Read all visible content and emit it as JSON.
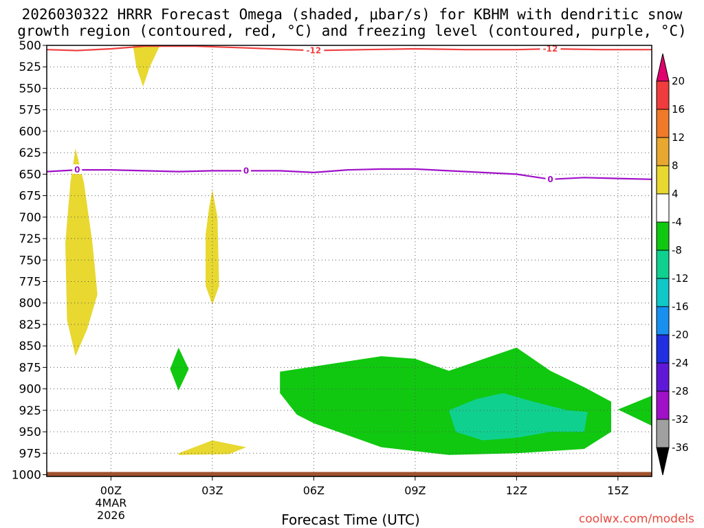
{
  "chart_data": {
    "type": "time-height cross section",
    "title_line1": "2026030322 HRRR Forecast Omega (shaded, μbar/s) for KBHM with dendritic snow",
    "title_line2": "growth region (contoured, red, °C) and freezing level (contoured, purple, °C)",
    "xlabel": "Forecast Time (UTC)",
    "credit": "coolwx.com/models",
    "x_range_hours": [
      -1.9,
      16.0
    ],
    "y_range_hpa": [
      500,
      1002
    ],
    "y_ticks": [
      500,
      525,
      550,
      575,
      600,
      625,
      650,
      675,
      700,
      725,
      750,
      775,
      800,
      825,
      850,
      875,
      900,
      925,
      950,
      975,
      1000
    ],
    "x_ticks": [
      {
        "hour": 0,
        "label": "00Z",
        "date_line1": "4MAR",
        "date_line2": "2026"
      },
      {
        "hour": 3,
        "label": "03Z"
      },
      {
        "hour": 6,
        "label": "06Z"
      },
      {
        "hour": 9,
        "label": "09Z"
      },
      {
        "hour": 12,
        "label": "12Z"
      },
      {
        "hour": 15,
        "label": "15Z"
      }
    ],
    "colorbar": {
      "tick_labels": [
        "20",
        "16",
        "12",
        "8",
        "4",
        "-4",
        "-8",
        "-12",
        "-16",
        "-20",
        "-24",
        "-28",
        "-32",
        "-36"
      ],
      "colors": [
        "#e0006e",
        "#f03c3c",
        "#f07a28",
        "#e8a830",
        "#e8d830",
        "#ffffff",
        "#10c810",
        "#10d090",
        "#10c8c8",
        "#1890f0",
        "#2030e0",
        "#6018d8",
        "#a010c8",
        "#a0a0a0",
        "#000000"
      ]
    },
    "ground_color": "#a0522d",
    "contours": [
      {
        "name": "dendritic -12C",
        "color": "#f04040",
        "label": "-12",
        "points": [
          [
            -1.9,
            505
          ],
          [
            -1.0,
            506
          ],
          [
            0.0,
            504
          ],
          [
            1.0,
            501
          ],
          [
            2.5,
            501
          ],
          [
            4.0,
            503
          ],
          [
            6.0,
            506
          ],
          [
            7.5,
            505
          ],
          [
            9.0,
            504
          ],
          [
            10.5,
            505
          ],
          [
            12.0,
            505
          ],
          [
            13.0,
            504
          ],
          [
            14.5,
            505
          ],
          [
            16.0,
            505
          ]
        ],
        "label_positions": [
          [
            6.0,
            506
          ],
          [
            13.0,
            504
          ]
        ]
      },
      {
        "name": "freezing level 0C",
        "color": "#a010c8",
        "label": "0",
        "points": [
          [
            -1.9,
            647
          ],
          [
            -1.0,
            645
          ],
          [
            0.0,
            645
          ],
          [
            1.0,
            646
          ],
          [
            2.0,
            647
          ],
          [
            3.0,
            646
          ],
          [
            4.0,
            646
          ],
          [
            5.0,
            646
          ],
          [
            6.0,
            648
          ],
          [
            7.0,
            645
          ],
          [
            8.0,
            644
          ],
          [
            9.0,
            644
          ],
          [
            10.0,
            646
          ],
          [
            11.0,
            648
          ],
          [
            12.0,
            650
          ],
          [
            13.0,
            656
          ],
          [
            14.0,
            654
          ],
          [
            15.0,
            655
          ],
          [
            16.0,
            656
          ]
        ],
        "label_positions": [
          [
            -1.0,
            645
          ],
          [
            4.0,
            646
          ],
          [
            13.0,
            656
          ]
        ]
      }
    ],
    "omega_regions": [
      {
        "value_bin": "4 to 8",
        "color": "#e8d830",
        "points": [
          [
            0.65,
            500
          ],
          [
            1.45,
            500
          ],
          [
            1.15,
            525
          ],
          [
            0.95,
            548
          ],
          [
            0.75,
            525
          ]
        ]
      },
      {
        "value_bin": "4 to 8",
        "color": "#e8d830",
        "points": [
          [
            -1.05,
            620
          ],
          [
            -0.8,
            660
          ],
          [
            -0.55,
            730
          ],
          [
            -0.4,
            790
          ],
          [
            -0.7,
            830
          ],
          [
            -1.05,
            862
          ],
          [
            -1.3,
            820
          ],
          [
            -1.35,
            730
          ],
          [
            -1.2,
            660
          ]
        ]
      },
      {
        "value_bin": "4 to 8",
        "color": "#e8d830",
        "points": [
          [
            3.0,
            668
          ],
          [
            3.15,
            700
          ],
          [
            3.2,
            780
          ],
          [
            3.0,
            802
          ],
          [
            2.8,
            780
          ],
          [
            2.8,
            720
          ],
          [
            2.9,
            690
          ]
        ]
      },
      {
        "value_bin": "4 to 8",
        "color": "#e8d830",
        "points": [
          [
            2.0,
            975
          ],
          [
            3.0,
            960
          ],
          [
            4.0,
            968
          ],
          [
            3.5,
            976
          ],
          [
            2.0,
            977
          ]
        ]
      },
      {
        "value_bin": "-8 to -4",
        "color": "#10c810",
        "points": [
          [
            2.0,
            852
          ],
          [
            2.3,
            877
          ],
          [
            2.0,
            902
          ],
          [
            1.75,
            877
          ]
        ]
      },
      {
        "value_bin": "-8 to -4",
        "color": "#10c810",
        "points": [
          [
            5.0,
            880
          ],
          [
            7.0,
            868
          ],
          [
            8.0,
            862
          ],
          [
            9.0,
            865
          ],
          [
            10.0,
            879
          ],
          [
            12.0,
            852
          ],
          [
            13.0,
            879
          ],
          [
            14.0,
            898
          ],
          [
            14.8,
            915
          ],
          [
            14.8,
            950
          ],
          [
            14.0,
            970
          ],
          [
            12.0,
            975
          ],
          [
            10.0,
            977
          ],
          [
            8.0,
            968
          ],
          [
            6.0,
            940
          ],
          [
            5.5,
            930
          ],
          [
            5.0,
            905
          ]
        ]
      },
      {
        "value_bin": "-8 to -4",
        "color": "#10c810",
        "points": [
          [
            16.0,
            908
          ],
          [
            15.0,
            924
          ],
          [
            16.0,
            943
          ]
        ]
      },
      {
        "value_bin": "-12 to -8",
        "color": "#10d090",
        "points": [
          [
            10.0,
            925
          ],
          [
            10.8,
            912
          ],
          [
            11.6,
            905
          ],
          [
            12.5,
            915
          ],
          [
            13.5,
            925
          ],
          [
            14.1,
            927
          ],
          [
            14.0,
            950
          ],
          [
            13.0,
            950
          ],
          [
            12.0,
            957
          ],
          [
            11.0,
            960
          ],
          [
            10.2,
            950
          ]
        ]
      }
    ]
  }
}
